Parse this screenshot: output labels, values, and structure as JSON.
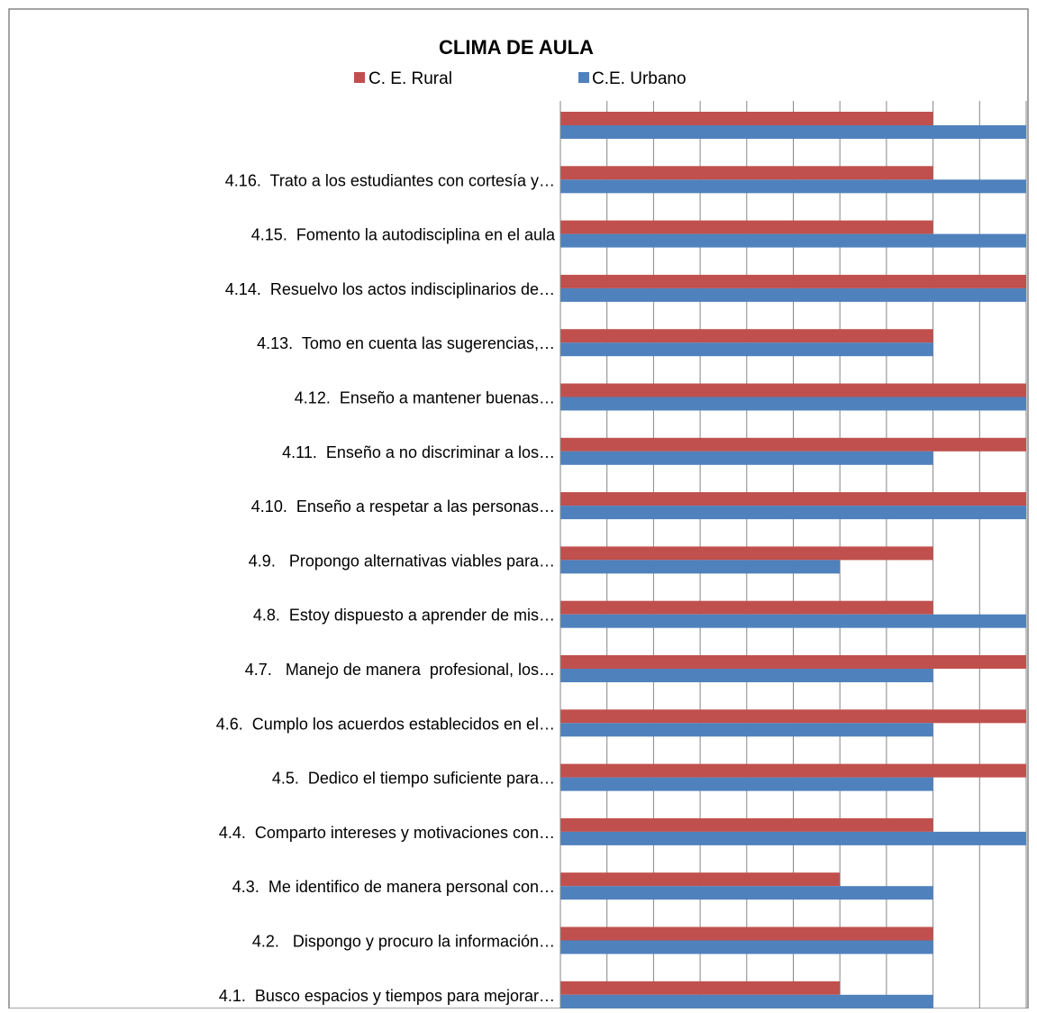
{
  "chart_data": {
    "type": "bar",
    "orientation": "horizontal",
    "title": "CLIMA DE AULA",
    "xlim": [
      0,
      10
    ],
    "grid": true,
    "legend_position": "top",
    "categories": [
      "",
      "4.16.  Trato a los estudiantes con cortesía y…",
      "4.15.  Fomento la autodisciplina en el aula",
      "4.14.  Resuelvo los actos indisciplinarios de…",
      "4.13.  Tomo en cuenta las sugerencias,…",
      "4.12.  Enseño a mantener buenas…",
      "4.11.  Enseño a no discriminar a los…",
      "4.10.  Enseño a respetar a las personas…",
      "4.9.   Propongo alternativas viables para…",
      "4.8.  Estoy dispuesto a aprender de mis…",
      "4.7.   Manejo de manera  profesional, los…",
      "4.6.  Cumplo los acuerdos establecidos en el…",
      "4.5.  Dedico el tiempo suficiente para…",
      "4.4.  Comparto intereses y motivaciones con…",
      "4.3.  Me identifico de manera personal con…",
      "4.2.   Dispongo y procuro la información…",
      "4.1.  Busco espacios y tiempos para mejorar…"
    ],
    "series": [
      {
        "name": "C. E. Rural",
        "color": "#c0504d",
        "values": [
          8,
          8,
          8,
          10,
          8,
          10,
          10,
          10,
          8,
          8,
          10,
          10,
          10,
          8,
          6,
          8,
          6
        ]
      },
      {
        "name": "C.E. Urbano",
        "color": "#4f81bd",
        "values": [
          10,
          10,
          10,
          10,
          8,
          10,
          8,
          10,
          6,
          10,
          8,
          8,
          8,
          10,
          8,
          8,
          8
        ]
      }
    ]
  }
}
